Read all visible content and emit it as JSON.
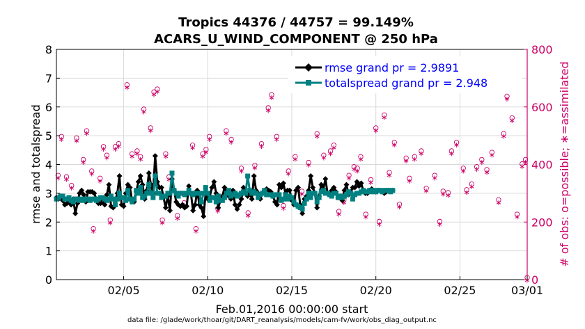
{
  "colors": {
    "rmse": "#000000",
    "spread": "#008080",
    "obs": "#cc0066",
    "legend_text": "#0000ff",
    "grid": "#d9d9d9"
  },
  "chart_data": {
    "type": "line",
    "title": [
      "Tropics 44376 / 44757 = 99.149%",
      "ACARS_U_WIND_COMPONENT @ 250 hPa"
    ],
    "xlabel": "Feb.01,2016 00:00:00 start",
    "ylabel_left": "rmse and totalspread",
    "ylabel_right": "# of obs: o=possible; ∗=assimilated",
    "footer": "data file: /glade/work/thoar/git/DART_reanalysis/models/cam-fv/work/obs_diag_output.nc",
    "xlim_days": [
      1,
      29
    ],
    "ylim_left": [
      0,
      8
    ],
    "ylim_right": [
      0,
      800
    ],
    "x_ticks": [
      {
        "day": 5,
        "label": "02/05"
      },
      {
        "day": 10,
        "label": "02/10"
      },
      {
        "day": 15,
        "label": "02/15"
      },
      {
        "day": 20,
        "label": "02/20"
      },
      {
        "day": 25,
        "label": "02/25"
      },
      {
        "day": 29,
        "label": "03/01"
      }
    ],
    "y_ticks_left": [
      "0",
      "1",
      "2",
      "3",
      "4",
      "5",
      "6",
      "7",
      "8"
    ],
    "y_ticks_right": [
      "0",
      "200",
      "400",
      "600",
      "800"
    ],
    "x_step_days": 0.125,
    "series": [
      {
        "name": "rmse",
        "legend": "rmse grand pr = 2.9891",
        "values": [
          2.85,
          2.8,
          2.9,
          2.75,
          2.6,
          2.65,
          2.7,
          2.6,
          2.8,
          2.3,
          2.65,
          3.0,
          3.1,
          2.95,
          2.7,
          3.05,
          3.05,
          3.05,
          3.0,
          2.8,
          2.65,
          2.65,
          2.75,
          2.6,
          2.95,
          3.3,
          2.55,
          2.5,
          2.75,
          3.0,
          3.6,
          2.6,
          2.55,
          3.0,
          3.3,
          3.2,
          2.75,
          2.7,
          3.05,
          3.4,
          3.6,
          3.3,
          2.8,
          3.1,
          3.7,
          3.3,
          3.0,
          4.3,
          3.4,
          3.2,
          3.2,
          2.85,
          2.5,
          2.9,
          2.4,
          3.5,
          3.1,
          2.7,
          2.6,
          2.55,
          2.6,
          2.5,
          2.55,
          3.25,
          3.0,
          2.4,
          2.6,
          3.1,
          2.6,
          2.5,
          2.2,
          3.0,
          2.8,
          2.9,
          3.2,
          3.4,
          3.0,
          2.5,
          2.75,
          2.9,
          3.2,
          3.0,
          2.9,
          2.8,
          3.1,
          2.6,
          2.45,
          2.6,
          2.8,
          3.2,
          3.0,
          2.9,
          3.0,
          2.8,
          3.6,
          3.1,
          3.0,
          2.8,
          3.0,
          3.1,
          3.15,
          3.1,
          3.05,
          2.9,
          2.7,
          2.6,
          3.3,
          3.2,
          3.35,
          3.0,
          3.1,
          3.1,
          2.75,
          2.6,
          3.1,
          3.2,
          2.6,
          2.3,
          2.8,
          2.9,
          3.1,
          3.6,
          3.2,
          3.0,
          2.5,
          2.9,
          3.3,
          3.15,
          3.5,
          3.0,
          2.95,
          3.1,
          3.2,
          3.05,
          2.85,
          2.9,
          2.75,
          3.1,
          3.3,
          2.95,
          3.05,
          3.2,
          3.2,
          3.4,
          3.25,
          3.35,
          3.1,
          3.0,
          3.0,
          3.1,
          3.15,
          3.1,
          3.05,
          3.1,
          3.1,
          3.05,
          3.0,
          3.05,
          3.1,
          3.1,
          3.1
        ]
      },
      {
        "name": "totalspread",
        "legend": "totalspread grand pr = 2.948",
        "values": [
          2.8,
          2.85,
          2.9,
          2.9,
          2.8,
          2.8,
          2.85,
          2.75,
          2.7,
          2.8,
          2.8,
          2.75,
          2.8,
          2.75,
          2.8,
          2.8,
          2.75,
          2.8,
          2.8,
          2.75,
          2.8,
          2.85,
          2.85,
          2.8,
          2.75,
          2.8,
          2.9,
          2.8,
          2.6,
          2.8,
          3.0,
          2.85,
          2.85,
          2.75,
          3.1,
          2.8,
          2.7,
          2.8,
          3.1,
          3.0,
          3.2,
          2.85,
          2.9,
          3.0,
          3.3,
          3.0,
          2.85,
          3.6,
          3.0,
          3.0,
          2.85,
          2.9,
          2.9,
          3.0,
          3.0,
          3.7,
          3.1,
          3.0,
          2.9,
          3.0,
          3.0,
          2.95,
          3.0,
          3.1,
          3.0,
          2.95,
          3.0,
          3.0,
          3.0,
          2.7,
          3.0,
          3.2,
          3.0,
          2.75,
          2.85,
          2.85,
          2.7,
          2.9,
          2.75,
          2.75,
          2.85,
          3.0,
          3.1,
          2.9,
          2.95,
          3.0,
          2.9,
          2.95,
          3.0,
          3.05,
          3.0,
          3.6,
          3.1,
          3.0,
          3.05,
          3.0,
          2.85,
          2.95,
          3.0,
          3.1,
          2.95,
          2.95,
          2.95,
          2.9,
          2.95,
          2.95,
          2.95,
          2.75,
          2.8,
          2.95,
          2.8,
          2.9,
          2.85,
          2.7,
          2.6,
          2.55,
          2.5,
          2.45,
          2.65,
          2.8,
          3.0,
          2.85,
          3.0,
          3.0,
          2.7,
          2.85,
          3.05,
          3.1,
          3.0,
          3.0,
          2.95,
          2.9,
          3.0,
          3.0,
          2.85,
          2.9,
          2.85,
          2.9,
          2.95,
          3.05,
          3.0,
          2.8,
          2.95,
          3.0,
          3.0,
          3.05,
          3.1,
          3.05,
          3.05,
          3.1,
          3.05,
          3.1,
          3.05,
          3.1,
          3.1,
          3.05,
          3.1,
          3.1,
          3.1,
          3.05,
          3.1
        ]
      }
    ],
    "obs_counts": [
      {
        "day": 1.1,
        "n": 355
      },
      {
        "day": 1.3,
        "n": 490
      },
      {
        "day": 1.6,
        "n": 350
      },
      {
        "day": 1.9,
        "n": 320
      },
      {
        "day": 2.2,
        "n": 485
      },
      {
        "day": 2.6,
        "n": 410
      },
      {
        "day": 2.8,
        "n": 510
      },
      {
        "day": 3.1,
        "n": 370
      },
      {
        "day": 3.2,
        "n": 170
      },
      {
        "day": 3.6,
        "n": 345
      },
      {
        "day": 3.8,
        "n": 455
      },
      {
        "day": 4.0,
        "n": 425
      },
      {
        "day": 4.2,
        "n": 200
      },
      {
        "day": 4.5,
        "n": 455
      },
      {
        "day": 4.7,
        "n": 465
      },
      {
        "day": 5.2,
        "n": 670
      },
      {
        "day": 5.5,
        "n": 430
      },
      {
        "day": 5.8,
        "n": 440
      },
      {
        "day": 6.0,
        "n": 420
      },
      {
        "day": 6.2,
        "n": 585
      },
      {
        "day": 6.6,
        "n": 520
      },
      {
        "day": 6.8,
        "n": 645
      },
      {
        "day": 7.0,
        "n": 655
      },
      {
        "day": 7.3,
        "n": 200
      },
      {
        "day": 7.5,
        "n": 430
      },
      {
        "day": 7.7,
        "n": 350
      },
      {
        "day": 8.2,
        "n": 215
      },
      {
        "day": 8.6,
        "n": 260
      },
      {
        "day": 9.1,
        "n": 460
      },
      {
        "day": 9.3,
        "n": 170
      },
      {
        "day": 9.7,
        "n": 430
      },
      {
        "day": 9.9,
        "n": 445
      },
      {
        "day": 10.1,
        "n": 490
      },
      {
        "day": 10.6,
        "n": 240
      },
      {
        "day": 11.1,
        "n": 510
      },
      {
        "day": 11.4,
        "n": 480
      },
      {
        "day": 12.0,
        "n": 380
      },
      {
        "day": 12.4,
        "n": 225
      },
      {
        "day": 12.8,
        "n": 390
      },
      {
        "day": 13.2,
        "n": 465
      },
      {
        "day": 13.6,
        "n": 590
      },
      {
        "day": 13.8,
        "n": 635
      },
      {
        "day": 14.1,
        "n": 490
      },
      {
        "day": 14.5,
        "n": 250
      },
      {
        "day": 14.8,
        "n": 370
      },
      {
        "day": 15.2,
        "n": 420
      },
      {
        "day": 15.6,
        "n": 300
      },
      {
        "day": 16.0,
        "n": 400
      },
      {
        "day": 16.5,
        "n": 500
      },
      {
        "day": 16.9,
        "n": 425
      },
      {
        "day": 17.3,
        "n": 440
      },
      {
        "day": 17.5,
        "n": 460
      },
      {
        "day": 17.8,
        "n": 230
      },
      {
        "day": 18.1,
        "n": 270
      },
      {
        "day": 18.4,
        "n": 355
      },
      {
        "day": 18.7,
        "n": 385
      },
      {
        "day": 18.9,
        "n": 380
      },
      {
        "day": 19.1,
        "n": 420
      },
      {
        "day": 19.4,
        "n": 220
      },
      {
        "day": 19.7,
        "n": 340
      },
      {
        "day": 20.0,
        "n": 520
      },
      {
        "day": 20.2,
        "n": 195
      },
      {
        "day": 20.5,
        "n": 565
      },
      {
        "day": 20.8,
        "n": 365
      },
      {
        "day": 21.1,
        "n": 470
      },
      {
        "day": 21.4,
        "n": 255
      },
      {
        "day": 21.8,
        "n": 415
      },
      {
        "day": 22.0,
        "n": 345
      },
      {
        "day": 22.3,
        "n": 420
      },
      {
        "day": 22.7,
        "n": 440
      },
      {
        "day": 23.0,
        "n": 310
      },
      {
        "day": 23.5,
        "n": 355
      },
      {
        "day": 23.8,
        "n": 195
      },
      {
        "day": 24.0,
        "n": 300
      },
      {
        "day": 24.3,
        "n": 295
      },
      {
        "day": 24.5,
        "n": 440
      },
      {
        "day": 24.8,
        "n": 470
      },
      {
        "day": 25.2,
        "n": 380
      },
      {
        "day": 25.4,
        "n": 305
      },
      {
        "day": 25.7,
        "n": 325
      },
      {
        "day": 26.0,
        "n": 385
      },
      {
        "day": 26.3,
        "n": 410
      },
      {
        "day": 26.6,
        "n": 375
      },
      {
        "day": 26.9,
        "n": 435
      },
      {
        "day": 27.3,
        "n": 270
      },
      {
        "day": 27.6,
        "n": 500
      },
      {
        "day": 27.8,
        "n": 630
      },
      {
        "day": 28.1,
        "n": 555
      },
      {
        "day": 28.4,
        "n": 220
      },
      {
        "day": 28.7,
        "n": 395
      },
      {
        "day": 28.9,
        "n": 410
      },
      {
        "day": 29.0,
        "n": 0
      }
    ]
  }
}
